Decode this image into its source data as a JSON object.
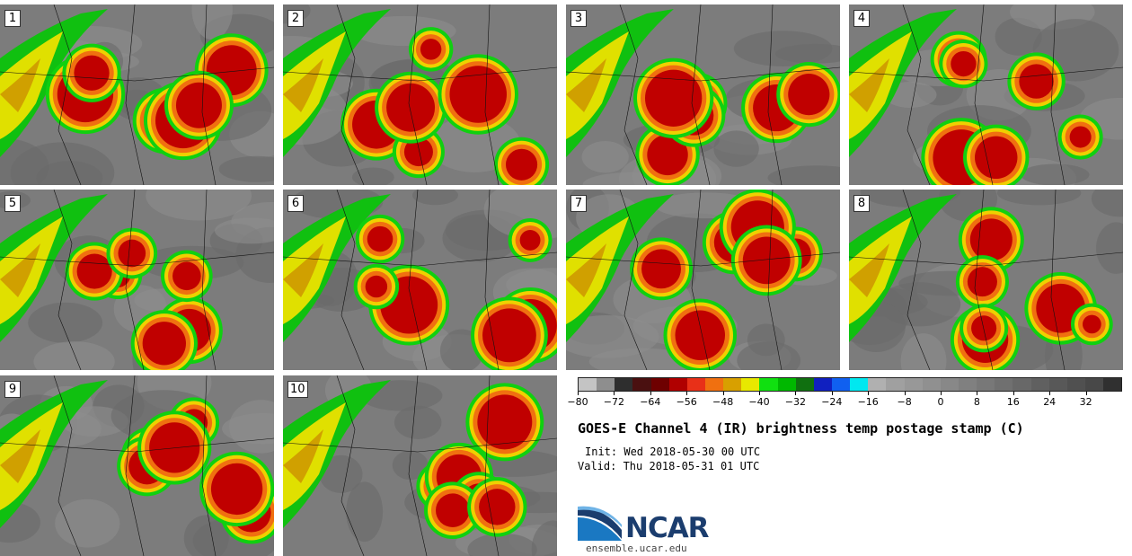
{
  "panels": [
    {
      "label": "1"
    },
    {
      "label": "2"
    },
    {
      "label": "3"
    },
    {
      "label": "4"
    },
    {
      "label": "5"
    },
    {
      "label": "6"
    },
    {
      "label": "7"
    },
    {
      "label": "8"
    },
    {
      "label": "9"
    },
    {
      "label": "10"
    }
  ],
  "colorbar": {
    "colors": [
      "#c4c4c4",
      "#8e8e8e",
      "#2e2e2e",
      "#4a1010",
      "#6e0000",
      "#b00000",
      "#e83018",
      "#f07010",
      "#d8a000",
      "#e8e800",
      "#10e010",
      "#00b800",
      "#107010",
      "#1020c0",
      "#1060f0",
      "#00e8f0",
      "#b0b0b0",
      "#a0a0a0",
      "#989898",
      "#909090",
      "#888888",
      "#808080",
      "#787878",
      "#707070",
      "#686868",
      "#606060",
      "#585858",
      "#505050",
      "#484848",
      "#303030"
    ],
    "ticks": [
      "−80",
      "−72",
      "−64",
      "−56",
      "−48",
      "−40",
      "−32",
      "−24",
      "−16",
      "−8",
      "0",
      "8",
      "16",
      "24",
      "32"
    ],
    "range": [
      -80,
      40
    ]
  },
  "title": "GOES-E Channel 4 (IR) brightness temp postage stamp (C)",
  "init": "Init: Wed 2018-05-30 00 UTC",
  "valid": "Valid: Thu 2018-05-31 01 UTC",
  "logo": {
    "text": "NCAR",
    "url": "ensemble.ucar.edu"
  }
}
